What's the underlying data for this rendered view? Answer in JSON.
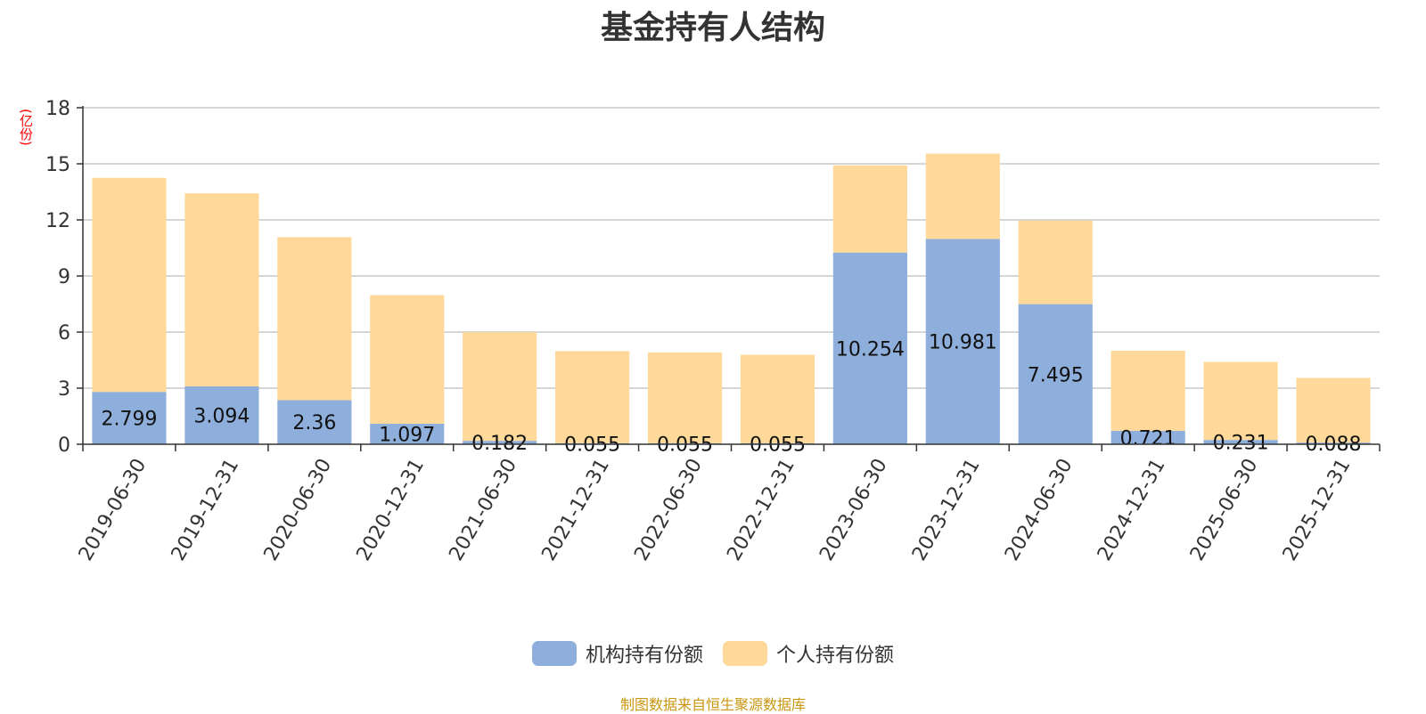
{
  "chart_data": {
    "type": "bar",
    "stacked": true,
    "title": "基金持有人结构",
    "unit_label": "(亿份)",
    "categories": [
      "2019-06-30",
      "2019-12-31",
      "2020-06-30",
      "2020-12-31",
      "2021-06-30",
      "2021-12-31",
      "2022-06-30",
      "2022-12-31",
      "2023-06-30",
      "2023-12-31",
      "2024-06-30",
      "2024-12-31",
      "2025-06-30",
      "2025-12-31"
    ],
    "ylim": [
      0,
      18
    ],
    "yticks": [
      0,
      3,
      6,
      9,
      12,
      15,
      18
    ],
    "grid": true,
    "legend_position": "bottom",
    "series": [
      {
        "name": "机构持有份额",
        "color": "#8eaedb",
        "values": [
          2.799,
          3.094,
          2.36,
          1.097,
          0.182,
          0.055,
          0.055,
          0.055,
          10.254,
          10.981,
          7.495,
          0.721,
          0.231,
          0.088
        ]
      },
      {
        "name": "个人持有份额",
        "color": "#fed999",
        "values": [
          11.45,
          10.33,
          8.72,
          6.88,
          5.82,
          4.93,
          4.86,
          4.73,
          4.66,
          4.56,
          4.47,
          4.28,
          4.17,
          3.46
        ]
      }
    ]
  },
  "footer": {
    "source": "制图数据来自恒生聚源数据库"
  }
}
